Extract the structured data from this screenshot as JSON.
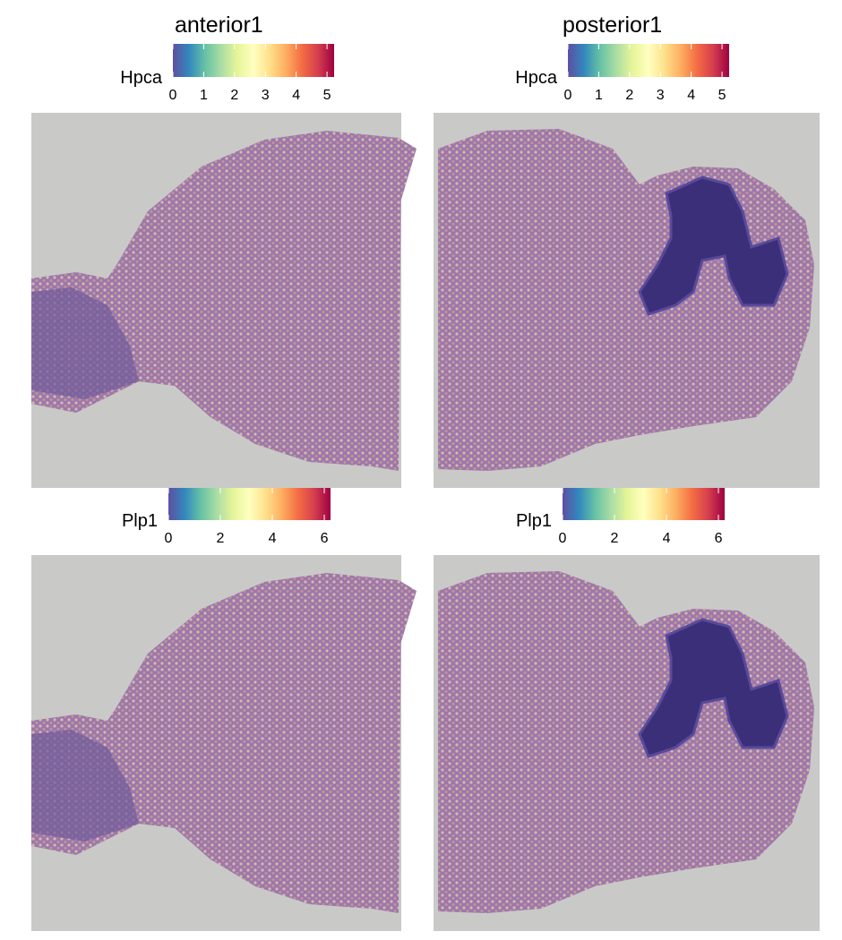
{
  "chart_data": [
    {
      "type": "spatial",
      "title": "anterior1",
      "legend_title": "Hpca",
      "clim": [
        0,
        5.23
      ],
      "cticks": [
        0,
        1,
        2,
        3,
        4,
        5
      ]
    },
    {
      "type": "spatial",
      "title": "posterior1",
      "legend_title": "Hpca",
      "clim": [
        0,
        5.23
      ],
      "cticks": [
        0,
        1,
        2,
        3,
        4,
        5
      ]
    },
    {
      "type": "spatial",
      "legend_title": "Plp1",
      "clim": [
        0,
        6.24
      ],
      "cticks": [
        0,
        2,
        4,
        6
      ]
    },
    {
      "type": "spatial",
      "legend_title": "Plp1",
      "clim": [
        0,
        6.24
      ],
      "cticks": [
        0,
        2,
        4,
        6
      ]
    }
  ]
}
